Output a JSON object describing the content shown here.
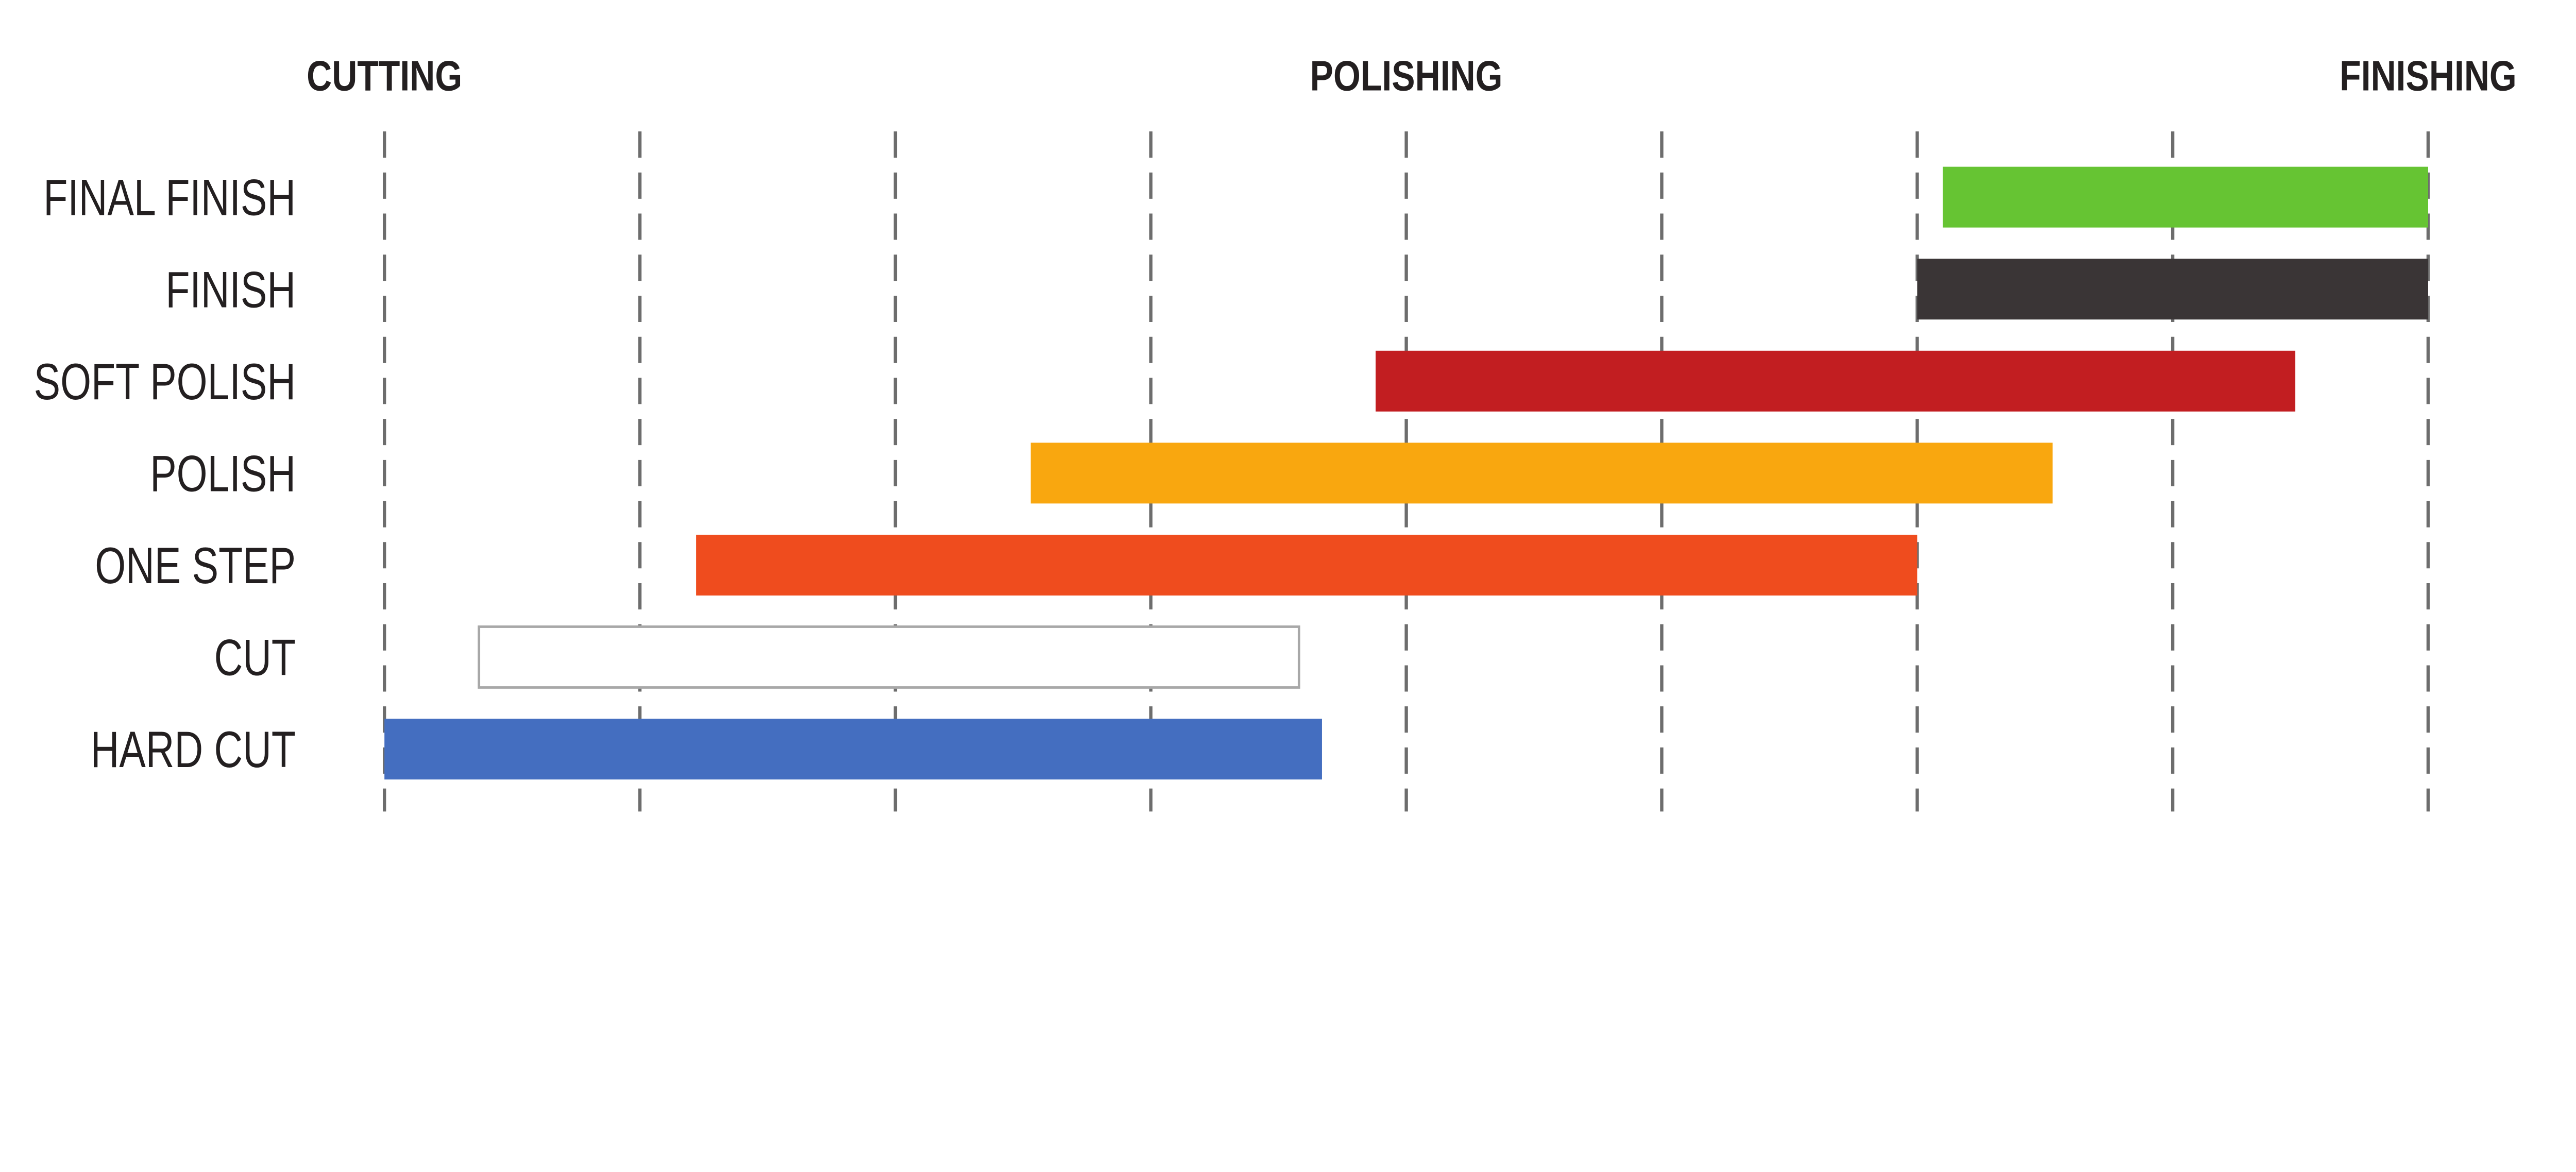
{
  "chart_data": {
    "type": "bar",
    "orientation": "horizontal-range",
    "title": "",
    "xlabel": "",
    "ylabel": "",
    "xlim": [
      0,
      8
    ],
    "grid": "vertical-dashed",
    "phase_labels": [
      {
        "label": "CUTTING",
        "x": 0
      },
      {
        "label": "POLISHING",
        "x": 4
      },
      {
        "label": "FINISHING",
        "x": 8
      }
    ],
    "categories": [
      "FINAL FINISH",
      "FINISH",
      "SOFT POLISH",
      "POLISH",
      "ONE STEP",
      "CUT",
      "HARD CUT"
    ],
    "ranges": [
      {
        "start": 6.1,
        "end": 8.0,
        "color": "#66c433"
      },
      {
        "start": 6.0,
        "end": 8.0,
        "color": "#3a3536"
      },
      {
        "start": 3.88,
        "end": 7.48,
        "color": "#c21e21"
      },
      {
        "start": 2.53,
        "end": 6.53,
        "color": "#f9a70f"
      },
      {
        "start": 1.22,
        "end": 6.0,
        "color": "#ef4c1e"
      },
      {
        "start": 0.37,
        "end": 3.58,
        "color": "#ffffff",
        "outline": "#a8a8a8"
      },
      {
        "start": 0.0,
        "end": 3.67,
        "color": "#446ec0"
      }
    ]
  }
}
